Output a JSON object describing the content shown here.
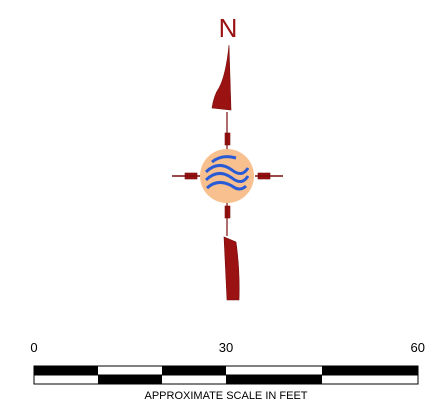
{
  "north_label": "N",
  "scale_bar": {
    "ticks": [
      "0",
      "30",
      "60"
    ],
    "caption": "APPROXIMATE SCALE IN FEET"
  }
}
